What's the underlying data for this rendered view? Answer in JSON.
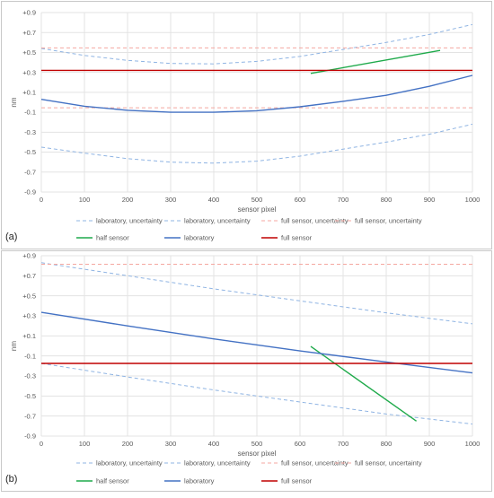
{
  "chart_data": [
    {
      "type": "line",
      "panel_label": "(a)",
      "xlabel": "sensor pixel",
      "ylabel": "nm",
      "xlim": [
        0,
        1000
      ],
      "ylim": [
        -0.9,
        0.9
      ],
      "x_ticks": [
        0,
        100,
        200,
        300,
        400,
        500,
        600,
        700,
        800,
        900,
        1000
      ],
      "y_ticks": [
        "-0.9",
        "-0.7",
        "-0.5",
        "-0.3",
        "-0.1",
        "+0.1",
        "+0.3",
        "+0.5",
        "+0.7",
        "+0.9"
      ],
      "grid": true,
      "legend_position": "bottom",
      "series": [
        {
          "name": "laboratory, uncertainty",
          "color": "#8fb4e3",
          "dash": true,
          "points": [
            [
              0,
              0.54
            ],
            [
              100,
              0.47
            ],
            [
              200,
              0.42
            ],
            [
              300,
              0.39
            ],
            [
              400,
              0.385
            ],
            [
              500,
              0.41
            ],
            [
              600,
              0.46
            ],
            [
              700,
              0.53
            ],
            [
              800,
              0.6
            ],
            [
              900,
              0.68
            ],
            [
              1000,
              0.78
            ]
          ]
        },
        {
          "name": "laboratory, uncertainty",
          "color": "#8fb4e3",
          "dash": true,
          "points": [
            [
              0,
              -0.45
            ],
            [
              100,
              -0.51
            ],
            [
              200,
              -0.565
            ],
            [
              300,
              -0.6
            ],
            [
              400,
              -0.61
            ],
            [
              500,
              -0.59
            ],
            [
              600,
              -0.54
            ],
            [
              700,
              -0.47
            ],
            [
              800,
              -0.4
            ],
            [
              900,
              -0.32
            ],
            [
              1000,
              -0.22
            ]
          ]
        },
        {
          "name": "full sensor, uncertainty",
          "color": "#f4a7a0",
          "dash": true,
          "points": [
            [
              0,
              0.545
            ],
            [
              1000,
              0.545
            ]
          ]
        },
        {
          "name": "full sensor, uncertainty",
          "color": "#f4a7a0",
          "dash": true,
          "points": [
            [
              0,
              -0.055
            ],
            [
              1000,
              -0.055
            ]
          ]
        },
        {
          "name": "half sensor",
          "color": "#1faa4b",
          "dash": false,
          "points": [
            [
              625,
              0.29
            ],
            [
              925,
              0.52
            ]
          ]
        },
        {
          "name": "laboratory",
          "color": "#4472c4",
          "dash": false,
          "points": [
            [
              0,
              0.03
            ],
            [
              100,
              -0.04
            ],
            [
              200,
              -0.08
            ],
            [
              300,
              -0.1
            ],
            [
              400,
              -0.1
            ],
            [
              500,
              -0.085
            ],
            [
              600,
              -0.045
            ],
            [
              700,
              0.01
            ],
            [
              800,
              0.07
            ],
            [
              900,
              0.16
            ],
            [
              1000,
              0.27
            ]
          ]
        },
        {
          "name": "full sensor",
          "color": "#c00000",
          "dash": false,
          "points": [
            [
              0,
              0.32
            ],
            [
              1000,
              0.32
            ]
          ]
        }
      ]
    },
    {
      "type": "line",
      "panel_label": "(b)",
      "xlabel": "sensor pixel",
      "ylabel": "nm",
      "xlim": [
        0,
        1000
      ],
      "ylim": [
        -0.9,
        0.9
      ],
      "x_ticks": [
        0,
        100,
        200,
        300,
        400,
        500,
        600,
        700,
        800,
        900,
        1000
      ],
      "y_ticks": [
        "-0.9",
        "-0.7",
        "-0.5",
        "-0.3",
        "-0.1",
        "+0.1",
        "+0.3",
        "+0.5",
        "+0.7",
        "+0.9"
      ],
      "grid": true,
      "legend_position": "bottom",
      "series": [
        {
          "name": "laboratory, uncertainty",
          "color": "#8fb4e3",
          "dash": true,
          "points": [
            [
              0,
              0.83
            ],
            [
              200,
              0.7
            ],
            [
              400,
              0.57
            ],
            [
              600,
              0.45
            ],
            [
              800,
              0.33
            ],
            [
              1000,
              0.22
            ]
          ]
        },
        {
          "name": "laboratory, uncertainty",
          "color": "#8fb4e3",
          "dash": true,
          "points": [
            [
              0,
              -0.175
            ],
            [
              200,
              -0.31
            ],
            [
              400,
              -0.44
            ],
            [
              600,
              -0.56
            ],
            [
              800,
              -0.68
            ],
            [
              1000,
              -0.78
            ]
          ]
        },
        {
          "name": "full sensor, uncertainty",
          "color": "#f4a7a0",
          "dash": true,
          "points": [
            [
              0,
              0.815
            ],
            [
              1000,
              0.815
            ]
          ]
        },
        {
          "name": "full sensor, uncertainty",
          "color": "#f4a7a0",
          "dash": true,
          "points": [
            [
              0,
              -0.175
            ],
            [
              1000,
              -0.175
            ]
          ]
        },
        {
          "name": "half sensor",
          "color": "#1faa4b",
          "dash": false,
          "points": [
            [
              625,
              -0.005
            ],
            [
              870,
              -0.75
            ]
          ]
        },
        {
          "name": "laboratory",
          "color": "#4472c4",
          "dash": false,
          "points": [
            [
              0,
              0.335
            ],
            [
              200,
              0.2
            ],
            [
              400,
              0.07
            ],
            [
              600,
              -0.05
            ],
            [
              800,
              -0.16
            ],
            [
              1000,
              -0.27
            ]
          ]
        },
        {
          "name": "full sensor",
          "color": "#c00000",
          "dash": false,
          "points": [
            [
              0,
              -0.175
            ],
            [
              1000,
              -0.175
            ]
          ]
        }
      ]
    }
  ]
}
